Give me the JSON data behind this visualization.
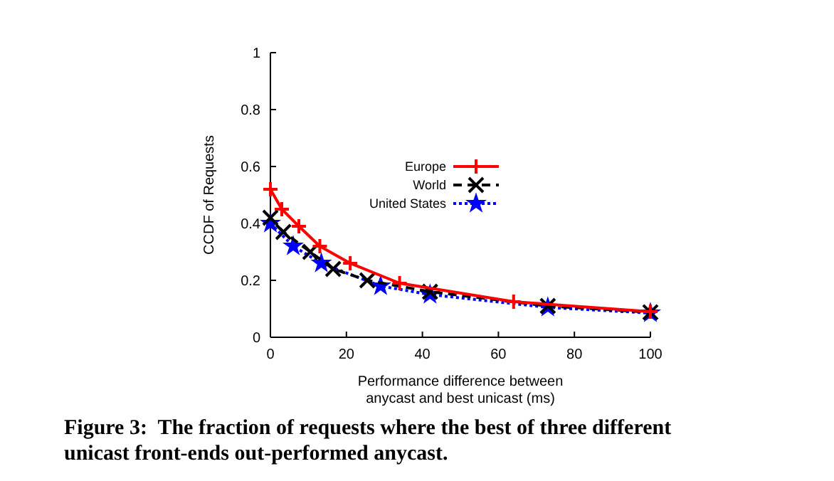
{
  "chart_data": {
    "type": "line",
    "xlabel": "Performance difference between\nanycast and best unicast (ms)",
    "ylabel": "CCDF of Requests",
    "xlim": [
      0,
      100
    ],
    "xticks": [
      0,
      20,
      40,
      60,
      80,
      100
    ],
    "ylim": [
      0,
      1
    ],
    "yticks": [
      0,
      0.2,
      0.4,
      0.6,
      0.8,
      1
    ],
    "grid": false,
    "legend": "center",
    "series": [
      {
        "name": "Europe",
        "color": "#ff0000",
        "marker": "cross",
        "line_style": "solid",
        "x": [
          0,
          3,
          7.5,
          13,
          21,
          34,
          64,
          100
        ],
        "values": [
          0.52,
          0.45,
          0.39,
          0.32,
          0.26,
          0.19,
          0.125,
          0.09
        ]
      },
      {
        "name": "World",
        "color": "#000000",
        "marker": "x",
        "line_style": "dashed",
        "x": [
          0,
          3.4,
          10.5,
          16.5,
          25.5,
          42,
          73,
          100
        ],
        "values": [
          0.42,
          0.37,
          0.3,
          0.24,
          0.2,
          0.16,
          0.11,
          0.088
        ]
      },
      {
        "name": "United States",
        "color": "#0000ff",
        "marker": "star",
        "line_style": "dotted",
        "x": [
          0,
          6,
          13.4,
          29,
          42,
          73,
          100
        ],
        "values": [
          0.4,
          0.32,
          0.26,
          0.18,
          0.15,
          0.105,
          0.085
        ]
      }
    ],
    "annotations": [
      "Figure 3:  The fraction of requests where the best of three different unicast front-ends out-performed anycast."
    ]
  }
}
